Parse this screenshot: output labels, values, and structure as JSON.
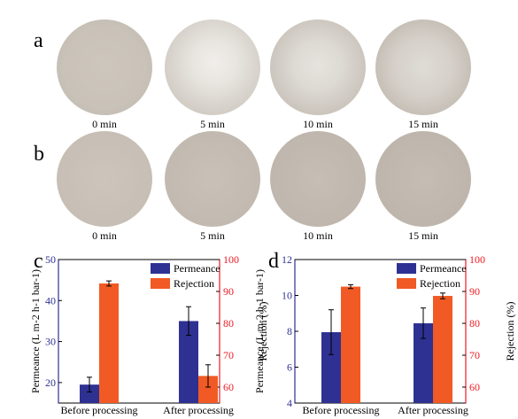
{
  "panels": {
    "a": {
      "letter": "a",
      "labels": [
        "0 min",
        "5 min",
        "10 min",
        "15 min"
      ]
    },
    "b": {
      "letter": "b",
      "labels": [
        "0 min",
        "5 min",
        "10 min",
        "15 min"
      ]
    }
  },
  "colors": {
    "permeance": "#2e3192",
    "rejection": "#f15a24",
    "rejection_axis": "#ed1c24"
  },
  "chart_data": [
    {
      "panel": "c",
      "type": "bar",
      "categories": [
        "Before processing",
        "After processing"
      ],
      "series": [
        {
          "name": "Permeance",
          "axis": "left",
          "values": [
            19.5,
            35.0
          ],
          "errors": [
            1.8,
            3.5
          ]
        },
        {
          "name": "Rejection",
          "axis": "right",
          "values": [
            92.5,
            63.5
          ],
          "errors": [
            0.8,
            3.5
          ]
        }
      ],
      "ylabel_left": "Permeance (L m-2 h-1 bar-1)",
      "ylabel_right": "Rejection  (%)",
      "ylim_left": [
        15,
        50
      ],
      "ylim_right": [
        55,
        100
      ],
      "yticks_left": [
        "20",
        "30",
        "40",
        "50"
      ],
      "yticks_right": [
        "60",
        "70",
        "80",
        "90",
        "100"
      ],
      "legend": "top-right"
    },
    {
      "panel": "d",
      "type": "bar",
      "categories": [
        "Before processing",
        "After processing"
      ],
      "series": [
        {
          "name": "Permeance",
          "axis": "left",
          "values": [
            7.95,
            8.45
          ],
          "errors": [
            1.25,
            0.85
          ]
        },
        {
          "name": "Rejection",
          "axis": "right",
          "values": [
            91.5,
            88.6
          ],
          "errors": [
            0.6,
            0.9
          ]
        }
      ],
      "ylabel_left": "Permeance (L m-2 h-1 bar-1)",
      "ylabel_right": "Rejection  (%)",
      "ylim_left": [
        4,
        12
      ],
      "ylim_right": [
        55,
        100
      ],
      "yticks_left": [
        "4",
        "6",
        "8",
        "10",
        "12"
      ],
      "yticks_right": [
        "60",
        "70",
        "80",
        "90",
        "100"
      ],
      "legend": "top-right"
    }
  ]
}
